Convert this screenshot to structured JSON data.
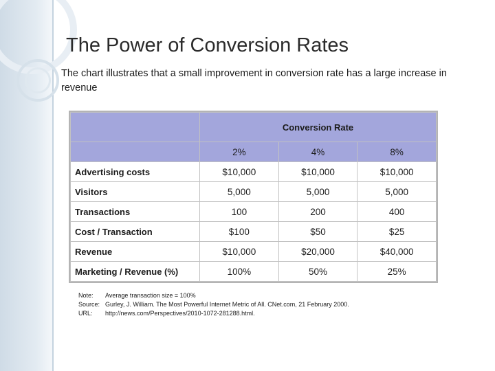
{
  "slide": {
    "title": "The Power of Conversion Rates",
    "subtitle": "The chart illustrates that a small improvement in conversion rate has a large increase in revenue"
  },
  "table": {
    "group_header": "Conversion Rate",
    "columns": [
      "2%",
      "4%",
      "8%"
    ],
    "rows": [
      {
        "label": "Advertising costs",
        "values": [
          "$10,000",
          "$10,000",
          "$10,000"
        ]
      },
      {
        "label": "Visitors",
        "values": [
          "5,000",
          "5,000",
          "5,000"
        ]
      },
      {
        "label": "Transactions",
        "values": [
          "100",
          "200",
          "400"
        ]
      },
      {
        "label": "Cost / Transaction",
        "values": [
          "$100",
          "$50",
          "$25"
        ]
      },
      {
        "label": "Revenue",
        "values": [
          "$10,000",
          "$20,000",
          "$40,000"
        ]
      },
      {
        "label": "Marketing / Revenue (%)",
        "values": [
          "100%",
          "50%",
          "25%"
        ]
      }
    ]
  },
  "notes": [
    {
      "key": "Note:",
      "text": "Average transaction size = 100%"
    },
    {
      "key": "Source:",
      "text": "Gurley, J. William. The Most Powerful Internet Metric of All. CNet.com, 21 February 2000."
    },
    {
      "key": "URL:",
      "text": "http://news.com/Perspectives/2010-1072-281288.html."
    }
  ],
  "colors": {
    "header_fill": "#a3a6dc",
    "side_band": "#dfe8ef"
  }
}
